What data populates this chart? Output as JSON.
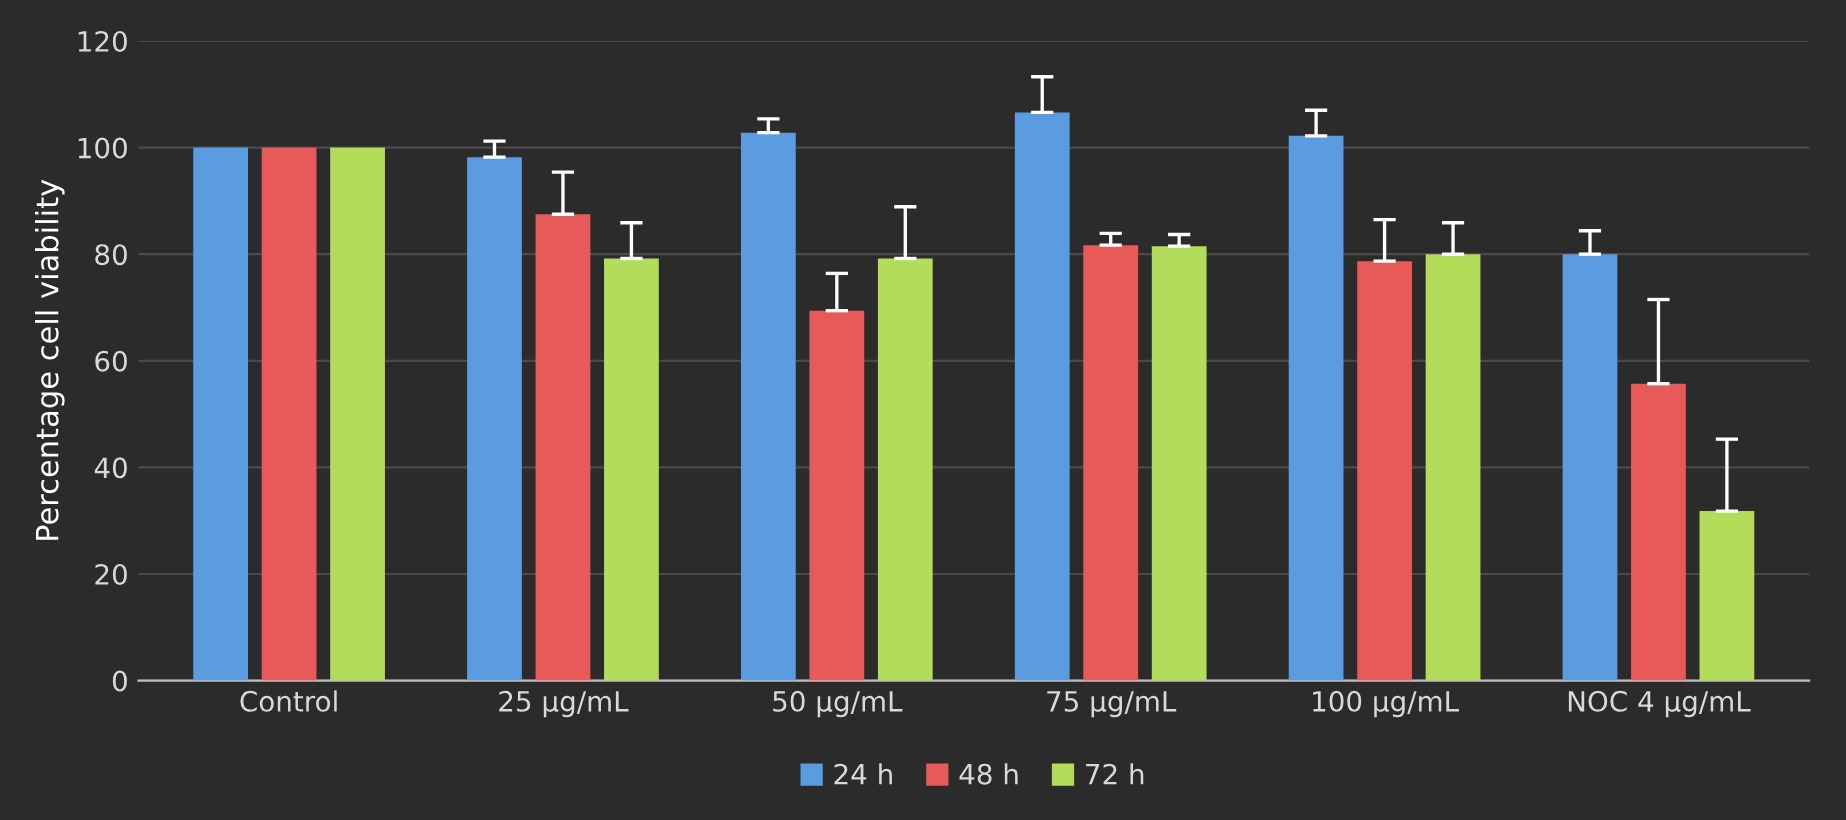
{
  "chart_data": {
    "type": "bar",
    "ylabel": "Percentage cell viability",
    "categories": [
      "Control",
      "25 µg/mL",
      "50 µg/mL",
      "75 µg/mL",
      "100 µg/mL",
      "NOC 4 µg/mL"
    ],
    "series": [
      {
        "name": "24 h",
        "color": "#5b9be0",
        "values": [
          100,
          98.2,
          102.8,
          106.6,
          102.2,
          80
        ],
        "errors": [
          null,
          [
            98.2,
            101.2
          ],
          [
            102.8,
            105.4
          ],
          [
            106.6,
            113.3
          ],
          [
            102.2,
            107
          ],
          [
            80,
            84.4
          ]
        ]
      },
      {
        "name": "48 h",
        "color": "#e85a5a",
        "values": [
          100,
          87.5,
          69.4,
          81.7,
          78.7,
          55.7
        ],
        "errors": [
          null,
          [
            87.5,
            95.4
          ],
          [
            69.4,
            76.4
          ],
          [
            81.7,
            83.9
          ],
          [
            78.7,
            86.5
          ],
          [
            55.7,
            71.5
          ]
        ]
      },
      {
        "name": "72 h",
        "color": "#b2dc5a",
        "values": [
          100,
          79.2,
          79.2,
          81.5,
          80,
          31.8
        ],
        "errors": [
          null,
          [
            79.2,
            85.9
          ],
          [
            79.2,
            88.9
          ],
          [
            81.5,
            83.7
          ],
          [
            80,
            85.9
          ],
          [
            31.8,
            45.3
          ]
        ]
      }
    ],
    "ylim": [
      0,
      120
    ],
    "yticks": [
      0,
      20,
      40,
      60,
      80,
      100,
      120
    ],
    "grid": "y",
    "legend": "bottom"
  }
}
